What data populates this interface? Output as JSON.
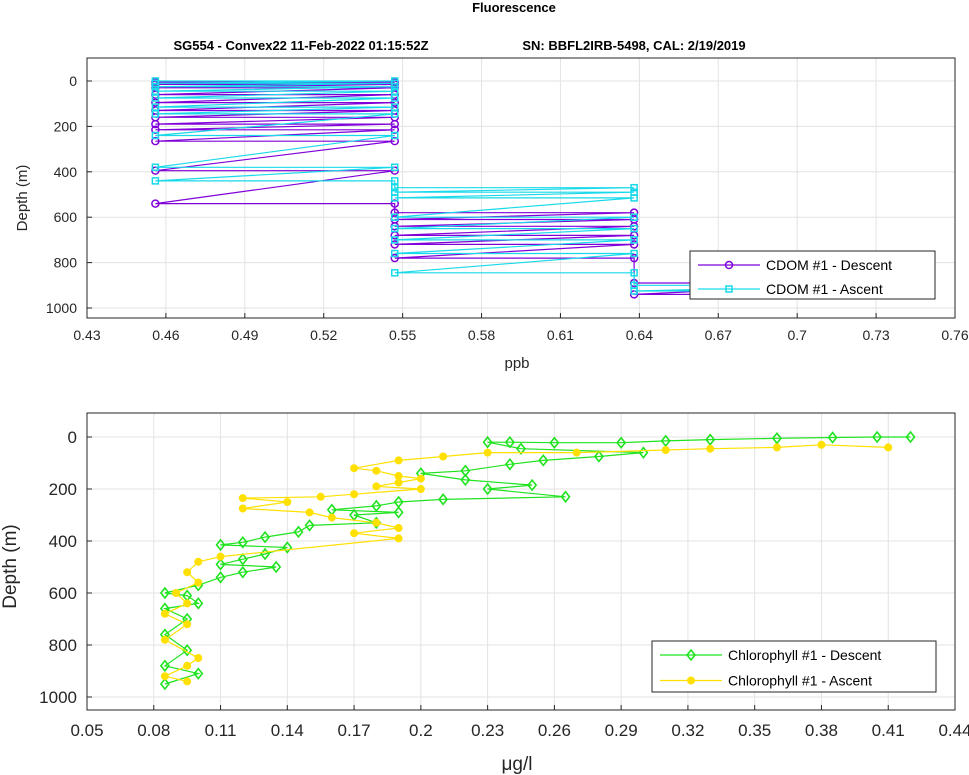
{
  "figure": {
    "title": "Fluorescence",
    "subtitle_left": "SG554 - Convex22 11-Feb-2022 01:15:52Z",
    "subtitle_right": "SN: BBFL2IRB-5498, CAL: 2/19/2019"
  },
  "colors": {
    "cdom_descent": "#8000d9",
    "cdom_ascent": "#17d9ea",
    "chl_descent": "#1fe31f",
    "chl_ascent": "#ffe000",
    "grid": "#e3e3e3",
    "axis": "#262626"
  },
  "chart_data": [
    {
      "type": "line",
      "name": "CDOM",
      "xlabel": "ppb",
      "ylabel": "Depth (m)",
      "xlim": [
        0.43,
        0.76
      ],
      "ylim": [
        0,
        1000
      ],
      "y_reversed": true,
      "grid": true,
      "legend_position": "bottom-right",
      "xticks": [
        0.43,
        0.46,
        0.49,
        0.52,
        0.55,
        0.58,
        0.61,
        0.64,
        0.67,
        0.7,
        0.73,
        0.76
      ],
      "xtick_labels": [
        "0.43",
        "0.46",
        "0.49",
        "0.52",
        "0.55",
        "0.58",
        "0.61",
        "0.64",
        "0.67",
        "0.7",
        "0.73",
        "0.76"
      ],
      "yticks": [
        0,
        200,
        400,
        600,
        800,
        1000
      ],
      "ytick_labels": [
        "0",
        "200",
        "400",
        "600",
        "800",
        "1000"
      ],
      "series": [
        {
          "name": "CDOM #1 - Descent",
          "color": "#8000d9",
          "marker": "circle",
          "points": [
            [
              0.456,
              5
            ],
            [
              0.547,
              5
            ],
            [
              0.456,
              15
            ],
            [
              0.547,
              15
            ],
            [
              0.456,
              30
            ],
            [
              0.547,
              30
            ],
            [
              0.456,
              60
            ],
            [
              0.547,
              60
            ],
            [
              0.456,
              95
            ],
            [
              0.547,
              95
            ],
            [
              0.456,
              130
            ],
            [
              0.547,
              130
            ],
            [
              0.456,
              160
            ],
            [
              0.547,
              160
            ],
            [
              0.456,
              190
            ],
            [
              0.547,
              190
            ],
            [
              0.456,
              215
            ],
            [
              0.547,
              215
            ],
            [
              0.456,
              265
            ],
            [
              0.547,
              265
            ],
            [
              0.456,
              395
            ],
            [
              0.547,
              395
            ],
            [
              0.456,
              540
            ],
            [
              0.547,
              540
            ],
            [
              0.547,
              580
            ],
            [
              0.638,
              580
            ],
            [
              0.547,
              610
            ],
            [
              0.638,
              610
            ],
            [
              0.547,
              640
            ],
            [
              0.638,
              640
            ],
            [
              0.547,
              680
            ],
            [
              0.638,
              680
            ],
            [
              0.547,
              720
            ],
            [
              0.638,
              720
            ],
            [
              0.547,
              780
            ],
            [
              0.638,
              780
            ],
            [
              0.638,
              890
            ],
            [
              0.73,
              890
            ],
            [
              0.638,
              940
            ],
            [
              0.73,
              940
            ]
          ]
        },
        {
          "name": "CDOM #1 - Ascent",
          "color": "#17d9ea",
          "marker": "square",
          "points": [
            [
              0.456,
              0
            ],
            [
              0.547,
              0
            ],
            [
              0.456,
              10
            ],
            [
              0.547,
              10
            ],
            [
              0.456,
              25
            ],
            [
              0.547,
              25
            ],
            [
              0.456,
              45
            ],
            [
              0.547,
              45
            ],
            [
              0.456,
              75
            ],
            [
              0.547,
              75
            ],
            [
              0.456,
              115
            ],
            [
              0.547,
              115
            ],
            [
              0.456,
              145
            ],
            [
              0.547,
              145
            ],
            [
              0.456,
              240
            ],
            [
              0.547,
              240
            ],
            [
              0.456,
              380
            ],
            [
              0.547,
              380
            ],
            [
              0.456,
              440
            ],
            [
              0.547,
              440
            ],
            [
              0.547,
              470
            ],
            [
              0.638,
              470
            ],
            [
              0.547,
              490
            ],
            [
              0.638,
              490
            ],
            [
              0.547,
              515
            ],
            [
              0.638,
              515
            ],
            [
              0.547,
              600
            ],
            [
              0.638,
              600
            ],
            [
              0.547,
              650
            ],
            [
              0.638,
              650
            ],
            [
              0.547,
              700
            ],
            [
              0.638,
              700
            ],
            [
              0.547,
              760
            ],
            [
              0.638,
              760
            ],
            [
              0.547,
              845
            ],
            [
              0.638,
              845
            ],
            [
              0.638,
              900
            ],
            [
              0.73,
              900
            ],
            [
              0.638,
              925
            ],
            [
              0.73,
              925
            ]
          ]
        }
      ]
    },
    {
      "type": "line",
      "name": "Chlorophyll",
      "xlabel": "μg/l",
      "ylabel": "Depth (m)",
      "xlim": [
        0.05,
        0.44
      ],
      "ylim": [
        0,
        1000
      ],
      "y_reversed": true,
      "grid": true,
      "legend_position": "bottom-right",
      "xticks": [
        0.05,
        0.08,
        0.11,
        0.14,
        0.17,
        0.2,
        0.23,
        0.26,
        0.29,
        0.32,
        0.35,
        0.38,
        0.41,
        0.44
      ],
      "xtick_labels": [
        "0.05",
        "0.08",
        "0.11",
        "0.14",
        "0.17",
        "0.2",
        "0.23",
        "0.26",
        "0.29",
        "0.32",
        "0.35",
        "0.38",
        "0.41",
        "0.44"
      ],
      "yticks": [
        0,
        200,
        400,
        600,
        800,
        1000
      ],
      "ytick_labels": [
        "0",
        "200",
        "400",
        "600",
        "800",
        "1000"
      ],
      "series": [
        {
          "name": "Chlorophyll #1 - Descent",
          "color": "#1fe31f",
          "marker": "diamond",
          "points": [
            [
              0.42,
              0
            ],
            [
              0.405,
              0
            ],
            [
              0.385,
              2
            ],
            [
              0.36,
              5
            ],
            [
              0.33,
              10
            ],
            [
              0.31,
              15
            ],
            [
              0.29,
              22
            ],
            [
              0.26,
              22
            ],
            [
              0.24,
              20
            ],
            [
              0.23,
              20
            ],
            [
              0.245,
              45
            ],
            [
              0.3,
              60
            ],
            [
              0.28,
              75
            ],
            [
              0.255,
              90
            ],
            [
              0.24,
              105
            ],
            [
              0.22,
              130
            ],
            [
              0.2,
              140
            ],
            [
              0.22,
              165
            ],
            [
              0.25,
              185
            ],
            [
              0.23,
              200
            ],
            [
              0.265,
              230
            ],
            [
              0.21,
              240
            ],
            [
              0.19,
              250
            ],
            [
              0.18,
              265
            ],
            [
              0.16,
              280
            ],
            [
              0.19,
              290
            ],
            [
              0.17,
              300
            ],
            [
              0.18,
              330
            ],
            [
              0.15,
              340
            ],
            [
              0.145,
              365
            ],
            [
              0.13,
              385
            ],
            [
              0.12,
              405
            ],
            [
              0.11,
              415
            ],
            [
              0.14,
              425
            ],
            [
              0.13,
              450
            ],
            [
              0.12,
              470
            ],
            [
              0.11,
              490
            ],
            [
              0.135,
              500
            ],
            [
              0.12,
              520
            ],
            [
              0.11,
              540
            ],
            [
              0.1,
              570
            ],
            [
              0.085,
              600
            ],
            [
              0.095,
              610
            ],
            [
              0.1,
              640
            ],
            [
              0.085,
              660
            ],
            [
              0.095,
              700
            ],
            [
              0.085,
              760
            ],
            [
              0.095,
              820
            ],
            [
              0.085,
              880
            ],
            [
              0.1,
              910
            ],
            [
              0.085,
              950
            ]
          ]
        },
        {
          "name": "Chlorophyll #1 - Ascent",
          "color": "#ffe000",
          "marker": "circle",
          "points": [
            [
              0.41,
              40
            ],
            [
              0.38,
              30
            ],
            [
              0.36,
              40
            ],
            [
              0.33,
              45
            ],
            [
              0.31,
              50
            ],
            [
              0.27,
              60
            ],
            [
              0.23,
              60
            ],
            [
              0.21,
              75
            ],
            [
              0.19,
              90
            ],
            [
              0.17,
              120
            ],
            [
              0.18,
              130
            ],
            [
              0.19,
              150
            ],
            [
              0.2,
              160
            ],
            [
              0.19,
              175
            ],
            [
              0.18,
              190
            ],
            [
              0.2,
              200
            ],
            [
              0.17,
              220
            ],
            [
              0.155,
              230
            ],
            [
              0.12,
              235
            ],
            [
              0.14,
              250
            ],
            [
              0.12,
              275
            ],
            [
              0.15,
              290
            ],
            [
              0.16,
              310
            ],
            [
              0.18,
              330
            ],
            [
              0.19,
              350
            ],
            [
              0.17,
              370
            ],
            [
              0.19,
              390
            ],
            [
              0.11,
              460
            ],
            [
              0.1,
              480
            ],
            [
              0.095,
              520
            ],
            [
              0.1,
              560
            ],
            [
              0.09,
              600
            ],
            [
              0.095,
              640
            ],
            [
              0.085,
              680
            ],
            [
              0.095,
              720
            ],
            [
              0.085,
              780
            ],
            [
              0.1,
              850
            ],
            [
              0.095,
              880
            ],
            [
              0.085,
              920
            ],
            [
              0.095,
              940
            ]
          ]
        }
      ]
    }
  ]
}
